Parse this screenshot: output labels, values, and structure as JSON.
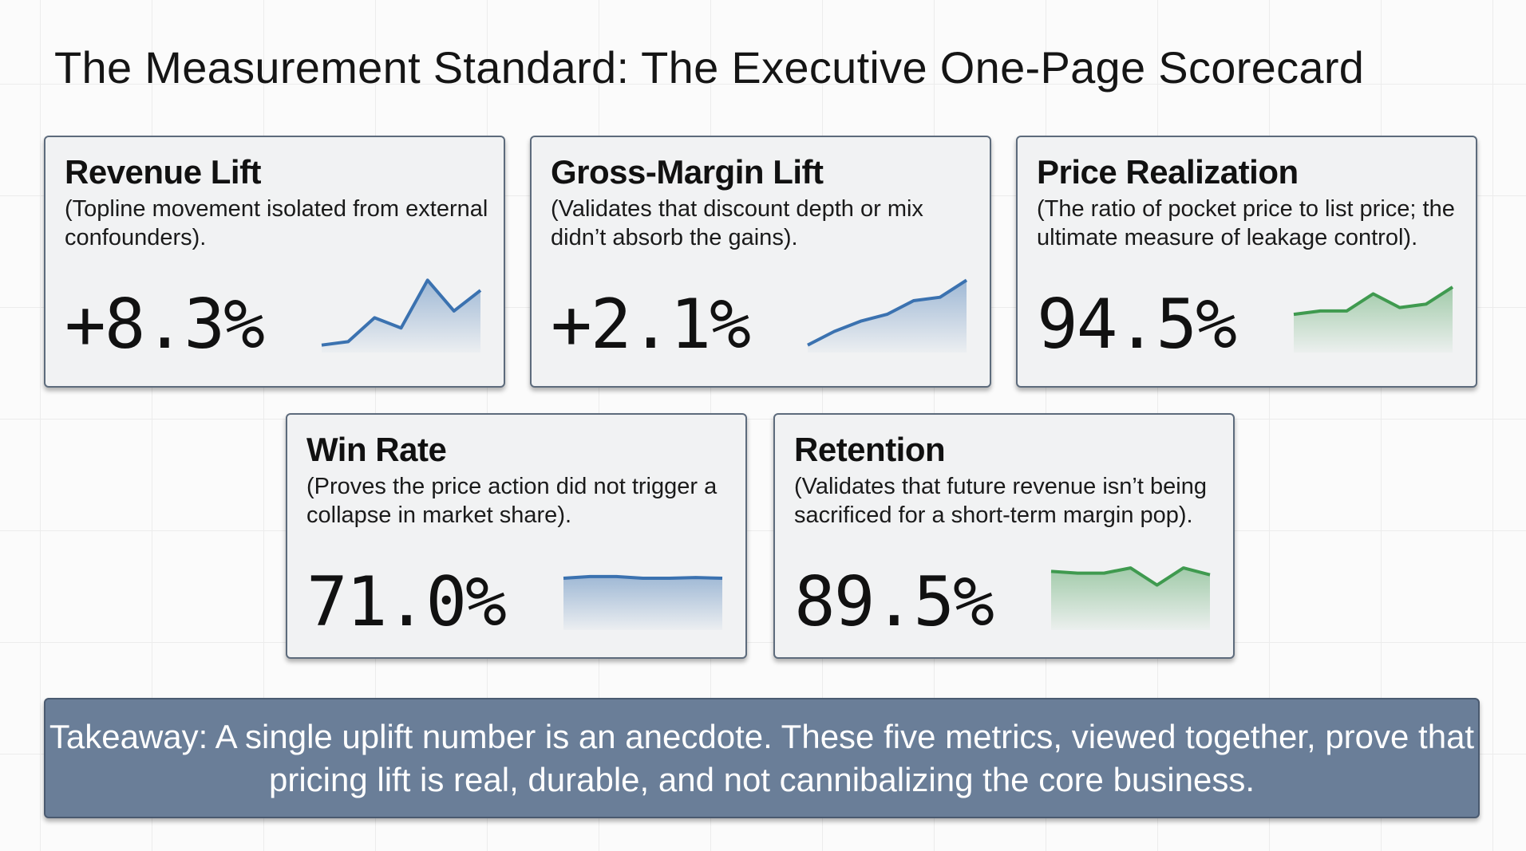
{
  "title": "The Measurement Standard: The Executive One-Page Scorecard",
  "cards": [
    {
      "title": "Revenue Lift",
      "description": "(Topline movement isolated from external confounders).",
      "value": "+8.3%",
      "color": "#3b72b0",
      "trend": [
        1,
        2,
        9,
        6,
        20,
        11,
        17
      ]
    },
    {
      "title": "Gross-Margin Lift",
      "description": "(Validates that discount depth or mix didn’t absorb the gains).",
      "value": "+2.1%",
      "color": "#3b72b0",
      "trend": [
        1,
        5,
        8,
        10,
        14,
        15,
        20
      ]
    },
    {
      "title": "Price Realization",
      "description": "(The ratio of pocket price to list price; the ultimate measure of leakage control).",
      "value": "94.5%",
      "color": "#3f9a4f",
      "trend": [
        10,
        11,
        11,
        16,
        12,
        13,
        18
      ]
    },
    {
      "title": "Win Rate",
      "description": "(Proves the price action did not trigger a collapse in market share).",
      "value": "71.0%",
      "color": "#3b72b0",
      "trend": [
        14,
        14.5,
        14.5,
        14,
        14,
        14.2,
        14
      ]
    },
    {
      "title": "Retention",
      "description": "(Validates that future revenue isn’t being sacrificed for a short-term margin pop).",
      "value": "89.5%",
      "color": "#3f9a4f",
      "trend": [
        16,
        15.5,
        15.5,
        17,
        12,
        17,
        15
      ]
    }
  ],
  "takeaway": "Takeaway: A single uplift number is an anecdote. These five metrics, viewed together, prove that pricing lift is real, durable, and not cannibalizing the core business."
}
